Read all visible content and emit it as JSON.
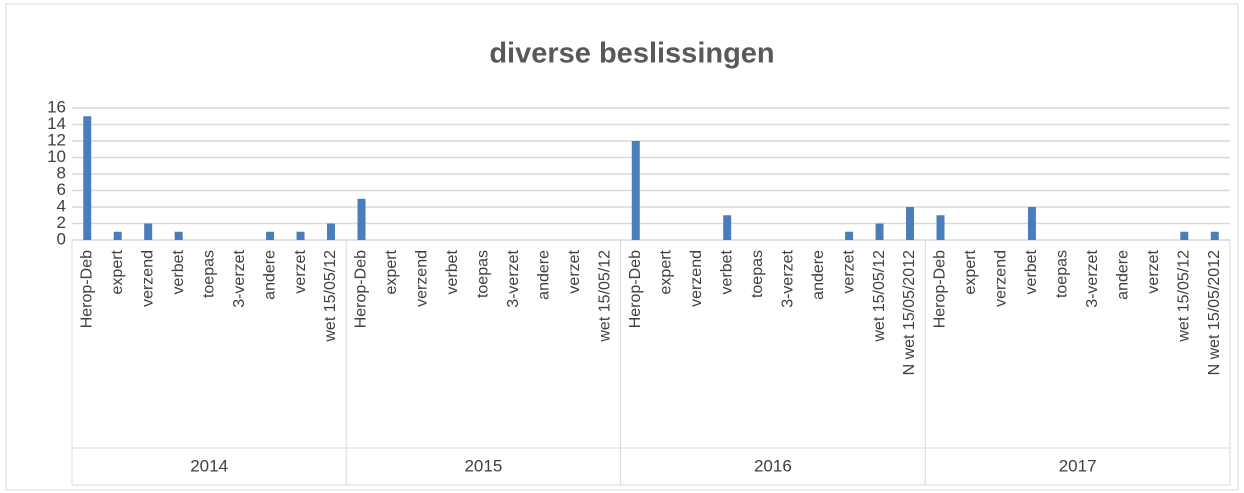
{
  "chart_data": {
    "type": "bar",
    "title": "diverse beslissingen",
    "color": "#4a7ebb",
    "ylim": [
      0,
      16
    ],
    "yticks": [
      0,
      2,
      4,
      6,
      8,
      10,
      12,
      14,
      16
    ],
    "grid": true,
    "groups": [
      {
        "name": "2014",
        "categories": [
          "Herop-Deb",
          "expert",
          "verzend",
          "verbet",
          "toepas",
          "3-verzet",
          "andere",
          "verzet",
          "wet 15/05/12"
        ],
        "values": [
          15,
          1,
          2,
          1,
          0,
          0,
          1,
          1,
          2
        ]
      },
      {
        "name": "2015",
        "categories": [
          "Herop-Deb",
          "expert",
          "verzend",
          "verbet",
          "toepas",
          "3-verzet",
          "andere",
          "verzet",
          "wet 15/05/12"
        ],
        "values": [
          5,
          0,
          0,
          0,
          0,
          0,
          0,
          0,
          0
        ]
      },
      {
        "name": "2016",
        "categories": [
          "Herop-Deb",
          "expert",
          "verzend",
          "verbet",
          "toepas",
          "3-verzet",
          "andere",
          "verzet",
          "wet 15/05/12",
          "N wet 15/05/2012"
        ],
        "values": [
          12,
          0,
          0,
          3,
          0,
          0,
          0,
          1,
          2,
          4
        ]
      },
      {
        "name": "2017",
        "categories": [
          "Herop-Deb",
          "expert",
          "verzend",
          "verbet",
          "toepas",
          "3-verzet",
          "andere",
          "verzet",
          "wet 15/05/12",
          "N wet 15/05/2012"
        ],
        "values": [
          3,
          0,
          0,
          4,
          0,
          0,
          0,
          0,
          1,
          1
        ]
      }
    ]
  }
}
